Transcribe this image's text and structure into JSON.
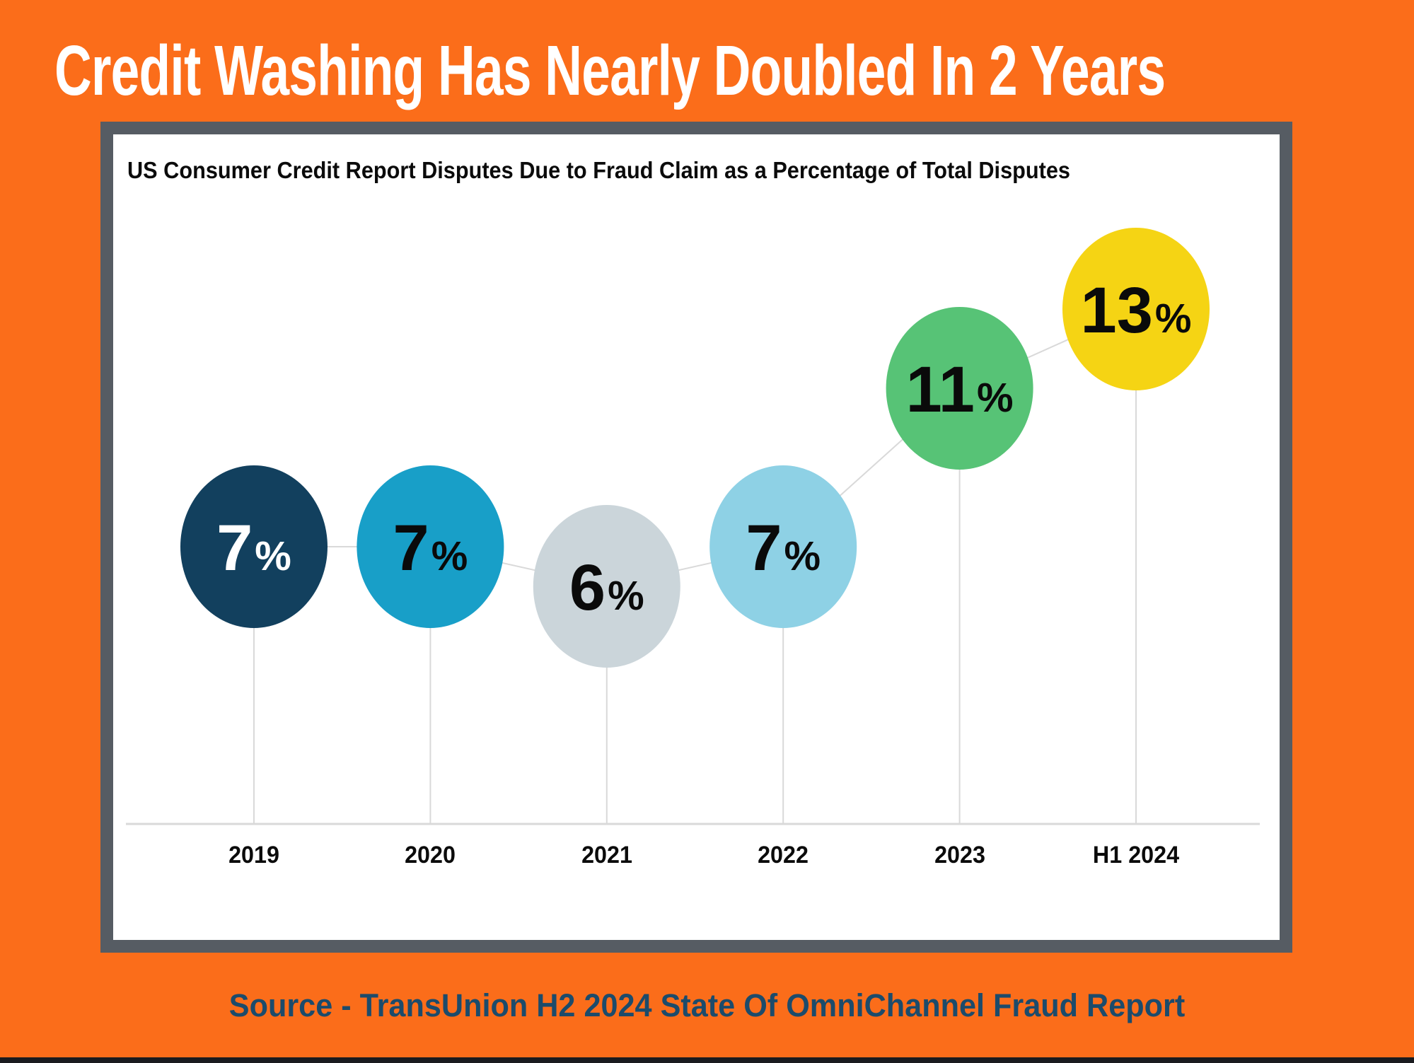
{
  "page": {
    "title": "Credit Washing Has Nearly Doubled In 2 Years",
    "source": "Source - TransUnion H2 2024 State Of OmniChannel Fraud Report"
  },
  "chart_data": {
    "type": "bubble",
    "title": "US Consumer Credit Report Disputes Due to Fraud Claim as a Percentage of Total Disputes",
    "categories": [
      "2019",
      "2020",
      "2021",
      "2022",
      "2023",
      "H1 2024"
    ],
    "values": [
      7,
      7,
      6,
      7,
      11,
      13
    ],
    "unit": "%",
    "xlabel": "",
    "ylabel": "",
    "ylim": [
      0,
      17
    ],
    "grid": false,
    "legend": "none",
    "bubble_colors": [
      "#12405E",
      "#189FC8",
      "#CBD5DA",
      "#8ED1E5",
      "#57C376",
      "#F5D414"
    ],
    "value_text_colors": [
      "#FFFFFF",
      "#0A0A0A",
      "#0A0A0A",
      "#0A0A0A",
      "#0A0A0A",
      "#0A0A0A"
    ],
    "connector_color": "#D9D9D9",
    "axis_line_color": "#D9D9D9"
  },
  "theme": {
    "background": "#FB6D1A",
    "frame_border": "#565C63",
    "panel": "#FFFFFF",
    "title_text": "#FFFFFF",
    "source_text": "#1C4B6B",
    "bottom_bar": "#1A1B1F"
  }
}
